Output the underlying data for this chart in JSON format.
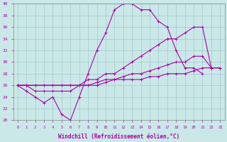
{
  "xlabel": "Windchill (Refroidissement éolien,°C)",
  "background_color": "#cbe8e8",
  "grid_color": "#a0c8c8",
  "line_color": "#aa00aa",
  "x_hours": [
    0,
    1,
    2,
    3,
    4,
    5,
    6,
    7,
    8,
    9,
    10,
    11,
    12,
    13,
    14,
    15,
    16,
    17,
    18,
    19,
    20,
    21,
    22,
    23
  ],
  "line1": [
    26,
    25,
    24,
    23,
    24,
    21,
    20,
    24,
    28,
    32,
    35,
    39,
    40,
    40,
    39,
    39,
    37,
    36,
    32,
    29,
    29,
    28,
    null,
    null
  ],
  "line2": [
    26,
    26,
    25,
    25,
    25,
    25,
    25,
    26,
    27,
    27,
    28,
    28,
    29,
    30,
    31,
    32,
    33,
    34,
    34,
    35,
    36,
    36,
    29,
    29
  ],
  "line3": [
    26,
    26,
    26,
    26,
    26,
    26,
    26,
    26,
    26,
    26.5,
    27,
    27,
    27.5,
    28,
    28,
    28.5,
    29,
    29.5,
    30,
    30,
    31,
    31,
    29,
    29
  ],
  "line4": [
    26,
    26,
    26,
    26,
    26,
    26,
    26,
    26,
    26,
    26,
    26.5,
    27,
    27,
    27,
    27,
    27.5,
    27.5,
    28,
    28,
    28,
    28.5,
    29,
    29,
    29
  ],
  "ylim": [
    20,
    40
  ],
  "yticks": [
    20,
    22,
    24,
    26,
    28,
    30,
    32,
    34,
    36,
    38,
    40
  ]
}
